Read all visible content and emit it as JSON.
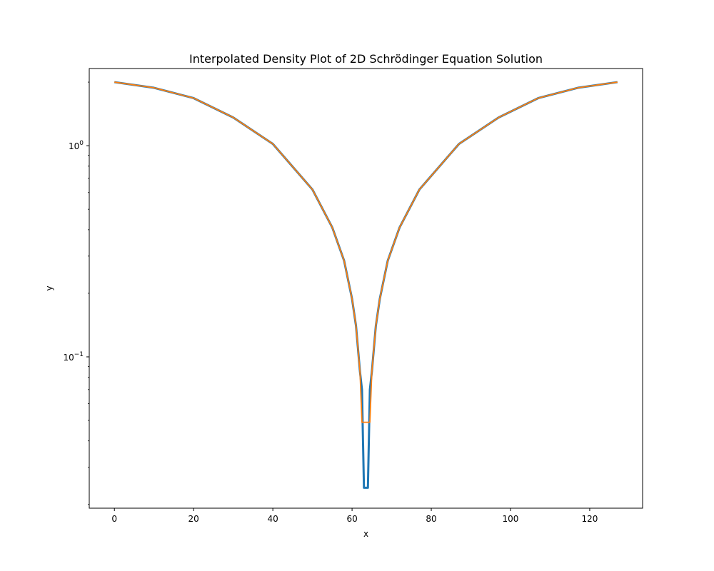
{
  "chart_data": {
    "type": "line",
    "title": "Interpolated Density Plot of 2D Schrödinger Equation Solution",
    "xlabel": "x",
    "ylabel": "y",
    "xlim": [
      -6.35,
      133.35
    ],
    "ylim": [
      0.0192,
      2.32
    ],
    "yscale": "log",
    "grid": false,
    "x_ticks": [
      0,
      20,
      40,
      60,
      80,
      100,
      120
    ],
    "y_major_ticks": [
      {
        "value": 1,
        "base": "10",
        "exp": "0"
      },
      {
        "value": 0.1,
        "base": "10",
        "exp": "−1"
      }
    ],
    "y_minor_ticks": [
      0.02,
      0.03,
      0.04,
      0.05,
      0.06,
      0.07,
      0.08,
      0.09,
      0.2,
      0.3,
      0.4,
      0.5,
      0.6,
      0.7,
      0.8,
      0.9,
      2
    ],
    "series": [
      {
        "color": "#1f77b4",
        "linewidth": 3,
        "x": [
          0,
          10,
          20,
          30,
          40,
          50,
          55,
          58,
          60,
          61,
          62,
          62.5,
          63,
          64,
          64.5,
          65,
          66,
          67,
          69,
          72,
          77,
          87,
          97,
          107,
          117,
          127
        ],
        "y": [
          2.0,
          1.88,
          1.68,
          1.36,
          1.02,
          0.62,
          0.41,
          0.285,
          0.188,
          0.14,
          0.085,
          0.07,
          0.024,
          0.024,
          0.07,
          0.085,
          0.14,
          0.188,
          0.285,
          0.41,
          0.62,
          1.02,
          1.36,
          1.68,
          1.88,
          2.0
        ]
      },
      {
        "color": "#ff7f0e",
        "linewidth": 1.8,
        "x": [
          0,
          10,
          20,
          30,
          40,
          50,
          55,
          58,
          60,
          61,
          62,
          62.5,
          64.5,
          65,
          66,
          67,
          69,
          72,
          77,
          87,
          97,
          107,
          117,
          127
        ],
        "y": [
          2.0,
          1.88,
          1.68,
          1.36,
          1.02,
          0.62,
          0.41,
          0.285,
          0.188,
          0.14,
          0.085,
          0.049,
          0.049,
          0.085,
          0.14,
          0.188,
          0.285,
          0.41,
          0.62,
          1.02,
          1.36,
          1.68,
          1.88,
          2.0
        ]
      }
    ]
  }
}
